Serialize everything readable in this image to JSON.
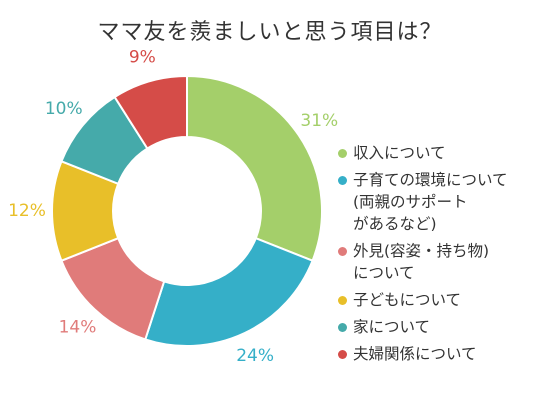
{
  "chart_data": {
    "type": "pie",
    "title": "ママ友を羨ましいと思う項目は？",
    "donut": true,
    "legend_position": "right",
    "slices": [
      {
        "label": "収入について",
        "value": 31,
        "value_label": "31%",
        "color": "#a4cf6a"
      },
      {
        "label": "子育ての環境について\n(両親のサポート\nがあるなど)",
        "value": 24,
        "value_label": "24%",
        "color": "#35afc8"
      },
      {
        "label": "外見(容姿・持ち物)\nについて",
        "value": 14,
        "value_label": "14%",
        "color": "#e07b7a"
      },
      {
        "label": "子どもについて",
        "value": 12,
        "value_label": "12%",
        "color": "#e8bf29"
      },
      {
        "label": "家について",
        "value": 10,
        "value_label": "10%",
        "color": "#45aaaa"
      },
      {
        "label": "夫婦関係について",
        "value": 9,
        "value_label": "9%",
        "color": "#d54c48"
      }
    ]
  }
}
